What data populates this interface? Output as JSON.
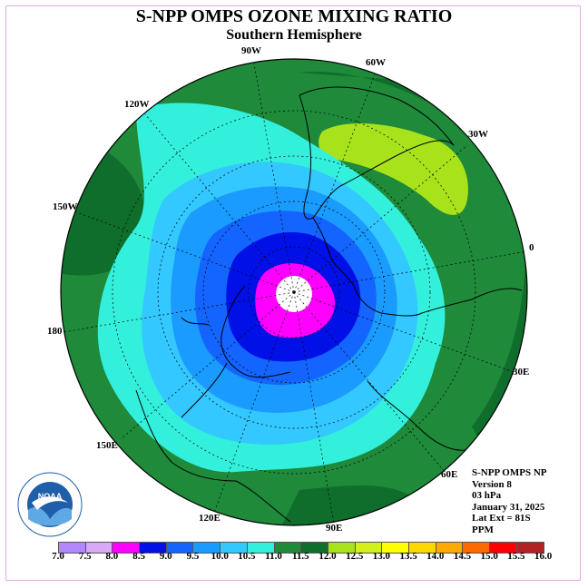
{
  "header": {
    "title": "S-NPP OMPS OZONE MIXING RATIO",
    "subtitle": "Southern Hemisphere"
  },
  "map": {
    "projection": "south-polar-stereographic",
    "longitude_labels": [
      {
        "label": "90W",
        "key": "lon_90w"
      },
      {
        "label": "60W",
        "key": "lon_60w"
      },
      {
        "label": "120W",
        "key": "lon_120w"
      },
      {
        "label": "30W",
        "key": "lon_30w"
      },
      {
        "label": "150W",
        "key": "lon_150w"
      },
      {
        "label": "0",
        "key": "lon_0"
      },
      {
        "label": "180",
        "key": "lon_180"
      },
      {
        "label": "30E",
        "key": "lon_30e"
      },
      {
        "label": "150E",
        "key": "lon_150e"
      },
      {
        "label": "60E",
        "key": "lon_60e"
      },
      {
        "label": "120E",
        "key": "lon_120e"
      },
      {
        "label": "90E",
        "key": "lon_90e"
      }
    ],
    "regions_description_colors": {
      "outer_green": "#1e8a3a",
      "dark_green": "#0f6e2b",
      "yellow_green": "#a8e21b",
      "cyan": "#33f0dd",
      "light_blue": "#33c8ff",
      "mid_blue": "#1a9bff",
      "blue": "#1464ff",
      "deep_blue": "#0010e6",
      "magenta": "#ff00ff",
      "center": "#ffffff"
    }
  },
  "info": {
    "line1": "S-NPP OMPS NP",
    "line2": "Version 8",
    "line3": "03 hPa",
    "line4": "January 31, 2025",
    "line5": "Lat Ext = 81S",
    "line6": "PPM"
  },
  "colorbar": {
    "ticks": [
      "7.0",
      "7.5",
      "8.0",
      "8.5",
      "9.0",
      "9.5",
      "10.0",
      "10.5",
      "11.0",
      "11.5",
      "12.0",
      "12.5",
      "13.0",
      "13.5",
      "14.0",
      "14.5",
      "15.0",
      "15.5",
      "16.0"
    ],
    "colors": [
      "#b388ff",
      "#d9a9f5",
      "#ff00ff",
      "#0010e6",
      "#1464ff",
      "#1a9bff",
      "#33c8ff",
      "#33f0dd",
      "#1e8a3a",
      "#0f6e2b",
      "#a8e21b",
      "#d4f01c",
      "#ffff00",
      "#ffd700",
      "#ffaa00",
      "#ff6a00",
      "#ff0000",
      "#b22222"
    ],
    "unit": "PPM"
  },
  "logo": {
    "text": "NOAA"
  }
}
